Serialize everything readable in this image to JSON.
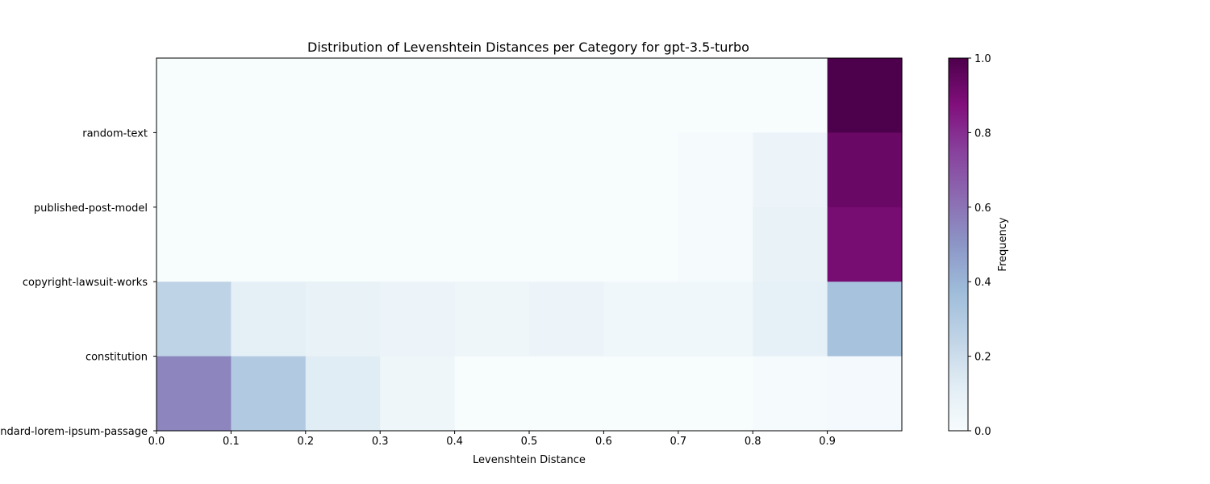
{
  "chart_data": {
    "type": "heatmap",
    "title": "Distribution of Levenshtein Distances per Category for gpt-3.5-turbo",
    "xlabel": "Levenshtein Distance",
    "ylabel": "",
    "colorbar_label": "Frequency",
    "x_bins": [
      0.0,
      0.1,
      0.2,
      0.3,
      0.4,
      0.5,
      0.6,
      0.7,
      0.8,
      0.9,
      1.0
    ],
    "x_ticks": [
      "0.0",
      "0.1",
      "0.2",
      "0.3",
      "0.4",
      "0.5",
      "0.6",
      "0.7",
      "0.8",
      "0.9"
    ],
    "y_tick_labels": [
      "random-text",
      "published-post-model",
      "copyright-lawsuit-works",
      "constitution",
      "standard-lorem-ipsum-passage"
    ],
    "colorbar_ticks": [
      "0.0",
      "0.2",
      "0.4",
      "0.6",
      "0.8",
      "1.0"
    ],
    "vmin": 0.0,
    "vmax": 1.0,
    "colormap": "BuPu",
    "rows": [
      [
        0.0,
        0.0,
        0.0,
        0.0,
        0.0,
        0.0,
        0.0,
        0.0,
        0.0,
        1.0
      ],
      [
        0.0,
        0.0,
        0.0,
        0.0,
        0.0,
        0.0,
        0.0,
        0.01,
        0.06,
        0.93
      ],
      [
        0.0,
        0.0,
        0.0,
        0.0,
        0.0,
        0.0,
        0.0,
        0.01,
        0.08,
        0.9
      ],
      [
        0.25,
        0.1,
        0.08,
        0.06,
        0.05,
        0.06,
        0.04,
        0.04,
        0.09,
        0.34
      ],
      [
        0.55,
        0.3,
        0.12,
        0.05,
        0.0,
        0.0,
        0.0,
        0.0,
        0.01,
        0.02
      ]
    ]
  }
}
